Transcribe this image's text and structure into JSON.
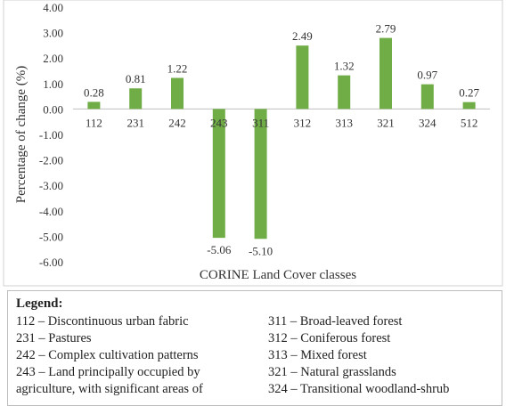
{
  "chart_data": {
    "type": "bar",
    "categories": [
      "112",
      "231",
      "242",
      "243",
      "311",
      "312",
      "313",
      "321",
      "324",
      "512"
    ],
    "values": [
      0.28,
      0.81,
      1.22,
      -5.06,
      -5.1,
      2.49,
      1.32,
      2.79,
      0.97,
      0.27
    ],
    "data_labels": [
      "0.28",
      "0.81",
      "1.22",
      "-5.06",
      "-5.10",
      "2.49",
      "1.32",
      "2.79",
      "0.97",
      "0.27"
    ],
    "xlabel": "CORINE Land Cover  classes",
    "ylabel": "Percentage of change (%)",
    "ylim": [
      -6.0,
      4.0
    ],
    "yticks": [
      "4.00",
      "3.00",
      "2.00",
      "1.00",
      "0.00",
      "-1.00",
      "-2.00",
      "-3.00",
      "-4.00",
      "-5.00",
      "-6.00"
    ],
    "bar_color": "#70ad47",
    "grid": false
  },
  "legend": {
    "title": "Legend:",
    "left_column": [
      "112 – Discontinuous urban fabric",
      "231 – Pastures",
      "242 – Complex cultivation patterns",
      "243 – Land principally occupied by",
      "agriculture, with significant areas of"
    ],
    "right_column": [
      "311 – Broad-leaved forest",
      "312 – Coniferous forest",
      "313 – Mixed forest",
      "321 – Natural grasslands",
      "324 – Transitional woodland-shrub"
    ]
  }
}
